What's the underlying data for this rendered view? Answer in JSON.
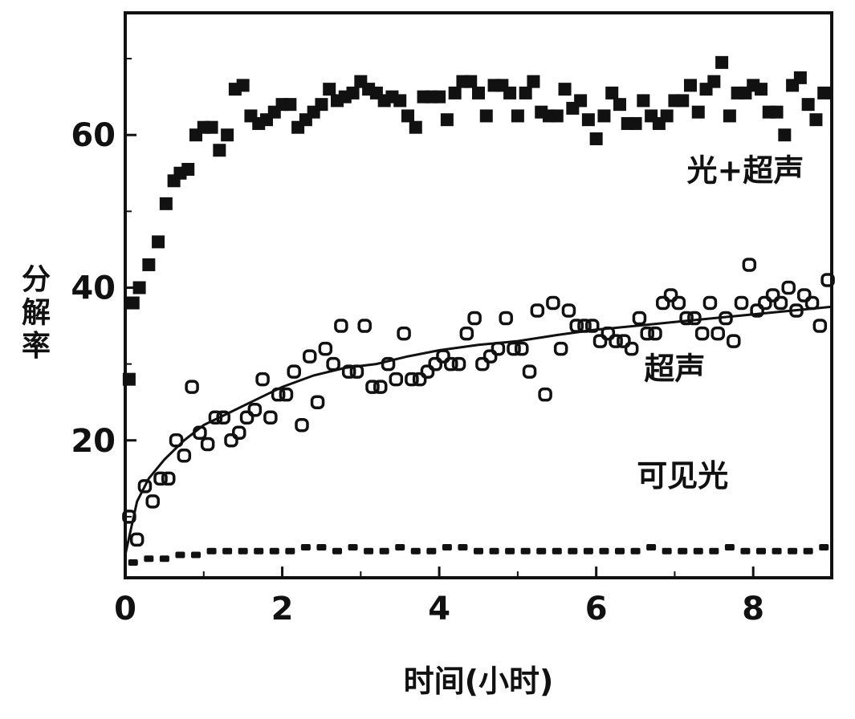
{
  "chart_data": {
    "type": "scatter",
    "title": "",
    "xlabel": "时间(小时)",
    "ylabel": "分解率",
    "xlim": [
      0,
      9
    ],
    "ylim": [
      2,
      76
    ],
    "x_ticks": [
      0,
      2,
      4,
      6,
      8
    ],
    "y_ticks": [
      20,
      40,
      60
    ],
    "grid": false,
    "legend": "none",
    "colors": {
      "axis": "#111111",
      "marker": "#111111",
      "background": "#ffffff"
    },
    "series": [
      {
        "name": "光+超声",
        "marker": "filled-square",
        "x": [
          0.05,
          0.1,
          0.18,
          0.3,
          0.42,
          0.52,
          0.62,
          0.7,
          0.8,
          0.9,
          1.0,
          1.1,
          1.2,
          1.3,
          1.4,
          1.5,
          1.6,
          1.7,
          1.8,
          1.9,
          2.0,
          2.1,
          2.2,
          2.3,
          2.4,
          2.5,
          2.6,
          2.7,
          2.8,
          2.9,
          3.0,
          3.1,
          3.2,
          3.3,
          3.4,
          3.5,
          3.6,
          3.7,
          3.8,
          3.9,
          4.0,
          4.1,
          4.2,
          4.3,
          4.4,
          4.5,
          4.6,
          4.7,
          4.8,
          4.9,
          5.0,
          5.1,
          5.2,
          5.3,
          5.4,
          5.5,
          5.6,
          5.7,
          5.8,
          5.9,
          6.0,
          6.1,
          6.2,
          6.3,
          6.4,
          6.5,
          6.6,
          6.7,
          6.8,
          6.9,
          7.0,
          7.1,
          7.2,
          7.3,
          7.4,
          7.5,
          7.6,
          7.7,
          7.8,
          7.9,
          8.0,
          8.1,
          8.2,
          8.3,
          8.4,
          8.5,
          8.6,
          8.7,
          8.8,
          8.9
        ],
        "y": [
          28,
          38,
          40,
          43,
          46,
          51,
          54,
          55,
          55.5,
          60,
          61,
          61,
          58,
          60,
          66,
          66.5,
          62.5,
          61.5,
          62,
          63,
          64,
          64,
          61,
          62,
          63,
          64,
          66,
          64.5,
          65,
          65.5,
          67,
          66,
          65.5,
          64.5,
          65,
          64.5,
          62.5,
          61,
          65,
          65,
          65,
          62,
          65.5,
          67,
          67,
          65.5,
          62.5,
          66.5,
          66.5,
          65.5,
          62.5,
          65.5,
          67,
          63,
          62.5,
          62.5,
          66,
          63.5,
          64.5,
          62,
          59.5,
          62.5,
          65.5,
          64,
          61.5,
          61.5,
          64.5,
          62.5,
          61.5,
          62.5,
          64.5,
          64.5,
          66.5,
          63,
          66,
          67,
          69.5,
          62.5,
          65.5,
          65.5,
          66.5,
          66,
          63,
          63,
          60,
          66.5,
          67.5,
          64,
          62,
          65.5
        ]
      },
      {
        "name": "超声",
        "marker": "open-circle",
        "x": [
          0.05,
          0.15,
          0.25,
          0.35,
          0.45,
          0.55,
          0.65,
          0.75,
          0.85,
          0.95,
          1.05,
          1.15,
          1.25,
          1.35,
          1.45,
          1.55,
          1.65,
          1.75,
          1.85,
          1.95,
          2.05,
          2.15,
          2.25,
          2.35,
          2.45,
          2.55,
          2.65,
          2.75,
          2.85,
          2.95,
          3.05,
          3.15,
          3.25,
          3.35,
          3.45,
          3.55,
          3.65,
          3.75,
          3.85,
          3.95,
          4.05,
          4.15,
          4.25,
          4.35,
          4.45,
          4.55,
          4.65,
          4.75,
          4.85,
          4.95,
          5.05,
          5.15,
          5.25,
          5.35,
          5.45,
          5.55,
          5.65,
          5.75,
          5.85,
          5.95,
          6.05,
          6.15,
          6.25,
          6.35,
          6.45,
          6.55,
          6.65,
          6.75,
          6.85,
          6.95,
          7.05,
          7.15,
          7.25,
          7.35,
          7.45,
          7.55,
          7.65,
          7.75,
          7.85,
          7.95,
          8.05,
          8.15,
          8.25,
          8.35,
          8.45,
          8.55,
          8.65,
          8.75,
          8.85,
          8.95
        ],
        "y": [
          10,
          7,
          14,
          12,
          15,
          15,
          20,
          18,
          27,
          21,
          19.5,
          23,
          23,
          20,
          21,
          23,
          24,
          28,
          23,
          26,
          26,
          29,
          22,
          31,
          25,
          32,
          30,
          35,
          29,
          29,
          35,
          27,
          27,
          30,
          28,
          34,
          28,
          28,
          29,
          30,
          31,
          30,
          30,
          34,
          36,
          30,
          31,
          32,
          36,
          32,
          32,
          29,
          37,
          26,
          38,
          32,
          37,
          35,
          35,
          35,
          33,
          34,
          33,
          33,
          32,
          36,
          34,
          34,
          38,
          39,
          38,
          36,
          36,
          34,
          38,
          34,
          36,
          33,
          38,
          43,
          37,
          38,
          39,
          38,
          40,
          37,
          39,
          38,
          35,
          41
        ]
      },
      {
        "name": "超声 fit",
        "marker": "line",
        "x": [
          0.0,
          0.15,
          0.3,
          0.5,
          0.75,
          1.0,
          1.3,
          1.6,
          2.0,
          2.4,
          2.8,
          3.2,
          3.6,
          4.0,
          4.5,
          5.0,
          5.5,
          6.0,
          6.5,
          7.0,
          7.5,
          8.0,
          8.5,
          9.0
        ],
        "y": [
          5,
          12,
          15,
          17.5,
          20,
          22,
          23.5,
          25,
          27,
          28.5,
          29.5,
          30,
          31,
          31.8,
          32.5,
          33,
          33.8,
          34.5,
          35,
          35.5,
          36,
          36.5,
          37,
          37.5
        ]
      },
      {
        "name": "可见光",
        "marker": "small-dot",
        "x": [
          0.1,
          0.3,
          0.5,
          0.7,
          0.9,
          1.1,
          1.3,
          1.5,
          1.7,
          1.9,
          2.1,
          2.3,
          2.5,
          2.7,
          2.9,
          3.1,
          3.3,
          3.5,
          3.7,
          3.9,
          4.1,
          4.3,
          4.5,
          4.7,
          4.9,
          5.1,
          5.3,
          5.5,
          5.7,
          5.9,
          6.1,
          6.3,
          6.5,
          6.7,
          6.9,
          7.1,
          7.3,
          7.5,
          7.7,
          7.9,
          8.1,
          8.3,
          8.5,
          8.7,
          8.9
        ],
        "y": [
          4,
          4.5,
          4.5,
          5,
          5,
          5.5,
          5.5,
          5.5,
          5.5,
          5.5,
          5.5,
          6,
          6,
          5.5,
          6,
          5.5,
          5.5,
          6,
          5.5,
          5.5,
          6,
          6,
          5.5,
          5.5,
          5.5,
          5.5,
          5.5,
          5.5,
          5.5,
          5.5,
          5.5,
          5.5,
          5.5,
          6,
          5.5,
          5.5,
          5.5,
          5.5,
          6,
          5.5,
          5.5,
          5.5,
          5.5,
          5.5,
          6
        ]
      }
    ],
    "annotations": [
      {
        "text": "光+超声",
        "x": 7.9,
        "y": 54
      },
      {
        "text": "超声",
        "x": 7.0,
        "y": 28
      },
      {
        "text": "可见光",
        "x": 7.1,
        "y": 14
      }
    ]
  }
}
